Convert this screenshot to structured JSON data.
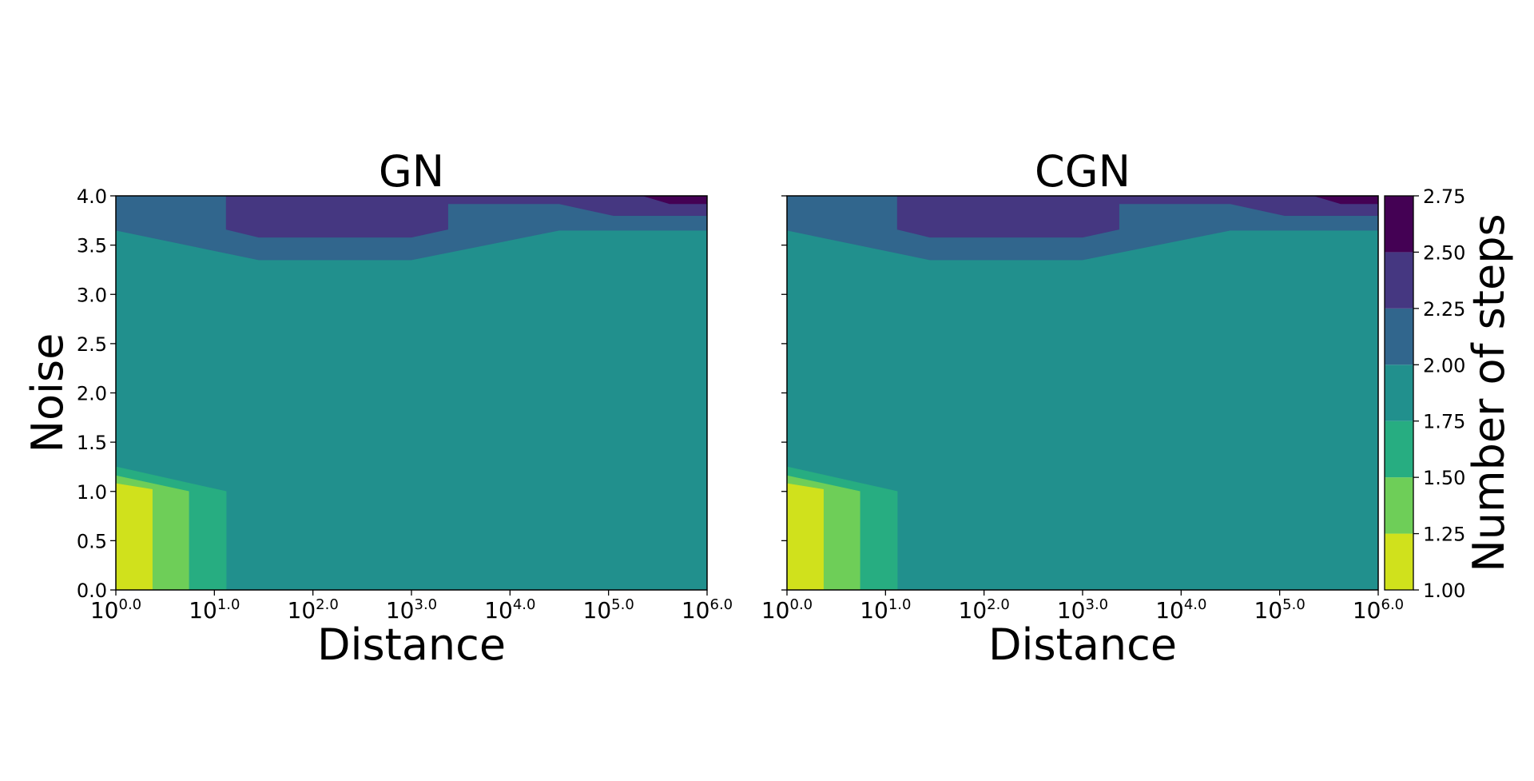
{
  "chart_data": [
    {
      "type": "contour",
      "title": "GN",
      "xlabel": "Distance",
      "ylabel": "Noise",
      "xscale": "log",
      "xlim": [
        1,
        1000000
      ],
      "ylim": [
        0.0,
        4.0
      ],
      "xticks": [
        "0.0",
        "1.0",
        "2.0",
        "3.0",
        "4.0",
        "5.0",
        "6.0"
      ],
      "x_tick_base": "10",
      "yticks": [
        "0.0",
        "0.5",
        "1.0",
        "1.5",
        "2.0",
        "2.5",
        "3.0",
        "3.5",
        "4.0"
      ],
      "ytick_labels_visible": true,
      "regions": [
        {
          "level_range": [
            1.75,
            2.0
          ],
          "color": "#21908d",
          "polygon": [
            [
              0,
              0
            ],
            [
              6,
              0
            ],
            [
              6,
              4
            ],
            [
              0,
              4
            ]
          ]
        },
        {
          "level_range": [
            2.0,
            2.25
          ],
          "color": "#31668d",
          "polygon": [
            [
              0,
              3.65
            ],
            [
              1.45,
              3.35
            ],
            [
              3.0,
              3.35
            ],
            [
              4.5,
              3.65
            ],
            [
              6,
              3.65
            ],
            [
              6,
              4
            ],
            [
              0,
              4
            ]
          ]
        },
        {
          "level_range": [
            2.25,
            2.5
          ],
          "color": "#453781",
          "polygon": [
            [
              1.12,
              3.66
            ],
            [
              1.45,
              3.58
            ],
            [
              3.0,
              3.58
            ],
            [
              3.37,
              3.66
            ],
            [
              3.37,
              3.92
            ],
            [
              4.5,
              3.92
            ],
            [
              5.05,
              3.8
            ],
            [
              6,
              3.8
            ],
            [
              6,
              4
            ],
            [
              1.12,
              4
            ]
          ]
        },
        {
          "level_range": [
            2.5,
            2.75
          ],
          "color": "#440154",
          "polygon": [
            [
              5.35,
              4
            ],
            [
              5.62,
              3.92
            ],
            [
              6,
              3.92
            ],
            [
              6,
              4
            ]
          ]
        },
        {
          "level_range": [
            1.5,
            1.75
          ],
          "color": "#27ad81",
          "polygon": [
            [
              0,
              0
            ],
            [
              1.12,
              0
            ],
            [
              1.12,
              1.0
            ],
            [
              0,
              1.25
            ]
          ]
        },
        {
          "level_range": [
            1.25,
            1.5
          ],
          "color": "#6ece58",
          "polygon": [
            [
              0,
              0
            ],
            [
              0.74,
              0
            ],
            [
              0.74,
              1.0
            ],
            [
              0,
              1.16
            ]
          ]
        },
        {
          "level_range": [
            1.0,
            1.25
          ],
          "color": "#d0e11c",
          "polygon": [
            [
              0,
              0
            ],
            [
              0.37,
              0
            ],
            [
              0.37,
              1.02
            ],
            [
              0,
              1.08
            ]
          ]
        }
      ]
    },
    {
      "type": "contour",
      "title": "CGN",
      "xlabel": "Distance",
      "ylabel": "",
      "xscale": "log",
      "xlim": [
        1,
        1000000
      ],
      "ylim": [
        0.0,
        4.0
      ],
      "xticks": [
        "0.0",
        "1.0",
        "2.0",
        "3.0",
        "4.0",
        "5.0",
        "6.0"
      ],
      "x_tick_base": "10",
      "yticks": [
        "0.0",
        "0.5",
        "1.0",
        "1.5",
        "2.0",
        "2.5",
        "3.0",
        "3.5",
        "4.0"
      ],
      "ytick_labels_visible": false,
      "regions": [
        {
          "level_range": [
            1.75,
            2.0
          ],
          "color": "#21908d",
          "polygon": [
            [
              0,
              0
            ],
            [
              6,
              0
            ],
            [
              6,
              4
            ],
            [
              0,
              4
            ]
          ]
        },
        {
          "level_range": [
            2.0,
            2.25
          ],
          "color": "#31668d",
          "polygon": [
            [
              0,
              3.65
            ],
            [
              1.45,
              3.35
            ],
            [
              3.0,
              3.35
            ],
            [
              4.5,
              3.65
            ],
            [
              6,
              3.65
            ],
            [
              6,
              4
            ],
            [
              0,
              4
            ]
          ]
        },
        {
          "level_range": [
            2.25,
            2.5
          ],
          "color": "#453781",
          "polygon": [
            [
              1.12,
              3.66
            ],
            [
              1.45,
              3.58
            ],
            [
              3.0,
              3.58
            ],
            [
              3.37,
              3.66
            ],
            [
              3.37,
              3.92
            ],
            [
              4.5,
              3.92
            ],
            [
              5.05,
              3.8
            ],
            [
              6,
              3.8
            ],
            [
              6,
              4
            ],
            [
              1.12,
              4
            ]
          ]
        },
        {
          "level_range": [
            2.5,
            2.75
          ],
          "color": "#440154",
          "polygon": [
            [
              5.35,
              4
            ],
            [
              5.62,
              3.92
            ],
            [
              6,
              3.92
            ],
            [
              6,
              4
            ]
          ]
        },
        {
          "level_range": [
            1.5,
            1.75
          ],
          "color": "#27ad81",
          "polygon": [
            [
              0,
              0
            ],
            [
              1.12,
              0
            ],
            [
              1.12,
              1.0
            ],
            [
              0,
              1.25
            ]
          ]
        },
        {
          "level_range": [
            1.25,
            1.5
          ],
          "color": "#6ece58",
          "polygon": [
            [
              0,
              0
            ],
            [
              0.74,
              0
            ],
            [
              0.74,
              1.0
            ],
            [
              0,
              1.16
            ]
          ]
        },
        {
          "level_range": [
            1.0,
            1.25
          ],
          "color": "#d0e11c",
          "polygon": [
            [
              0,
              0
            ],
            [
              0.37,
              0
            ],
            [
              0.37,
              1.02
            ],
            [
              0,
              1.08
            ]
          ]
        }
      ]
    }
  ],
  "colorbar": {
    "label": "Number of steps",
    "levels": [
      1.0,
      1.25,
      1.5,
      1.75,
      2.0,
      2.25,
      2.5,
      2.75
    ],
    "tick_labels": [
      "1.00",
      "1.25",
      "1.50",
      "1.75",
      "2.00",
      "2.25",
      "2.50",
      "2.75"
    ],
    "colors": [
      "#d0e11c",
      "#6ece58",
      "#27ad81",
      "#21908d",
      "#31668d",
      "#453781",
      "#440154"
    ]
  }
}
